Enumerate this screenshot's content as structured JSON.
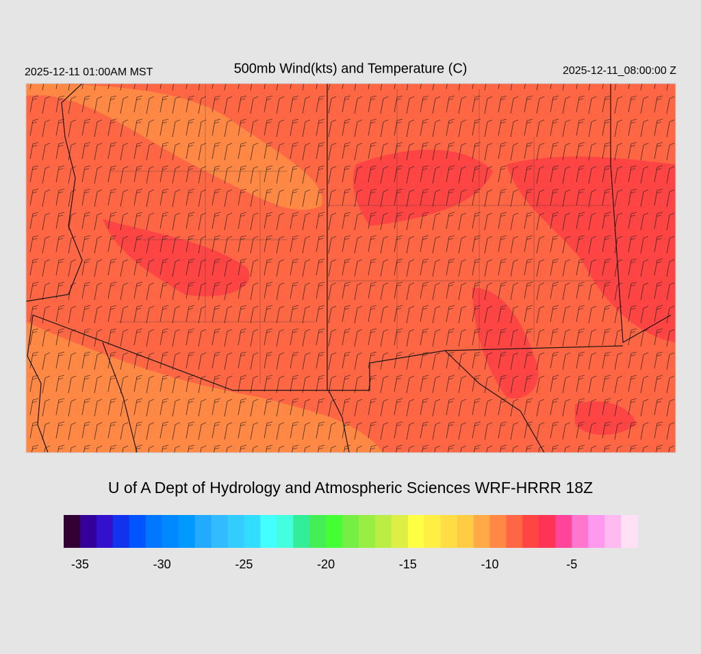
{
  "header": {
    "title": "500mb Wind(kts) and Temperature (C)",
    "local_time": "2025-12-11 01:00AM MST",
    "valid_time": "2025-12-11_08:00:00 Z"
  },
  "footer": {
    "credit": "U of A Dept of Hydrology and Atmospheric Sciences WRF-HRRR 18Z"
  },
  "colorbar": {
    "lim": [
      -36,
      -1
    ],
    "ticks": [
      -35,
      -30,
      -25,
      -20,
      -15,
      -10,
      -5
    ],
    "colors": [
      "#330033",
      "#330099",
      "#3311cc",
      "#1133ee",
      "#0055ff",
      "#0077ff",
      "#0088ff",
      "#0099ff",
      "#22aaff",
      "#33bbff",
      "#33ccff",
      "#33ddff",
      "#44ffff",
      "#44ffdd",
      "#33ee99",
      "#44ee55",
      "#44ff33",
      "#77ee44",
      "#99ee44",
      "#bbee44",
      "#ddee44",
      "#ffff44",
      "#ffee44",
      "#ffdd44",
      "#ffcc44",
      "#ffaa44",
      "#ff8844",
      "#ff6644",
      "#ff4444",
      "#ff3355",
      "#ff4499",
      "#ff77cc",
      "#ff99ee",
      "#ffbbee",
      "#ffe0f5"
    ]
  }
}
